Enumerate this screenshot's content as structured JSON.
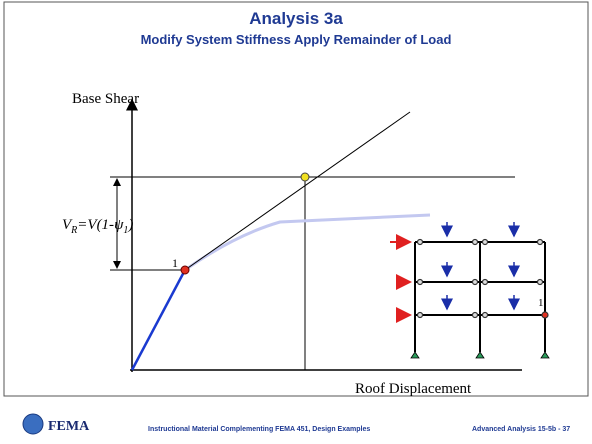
{
  "header": {
    "title": "Analysis 3a",
    "subtitle": "Modify System Stiffness Apply Remainder of Load"
  },
  "diagram": {
    "y_axis_label": "Base Shear",
    "x_axis_label": "Roof Displacement",
    "vr_label": {
      "parts": [
        "V",
        "R",
        "=V(1-",
        "ψ",
        "1",
        ")"
      ]
    },
    "point_label": "1",
    "frame_hinge_label": "1"
  },
  "footer": {
    "logo": "FEMA",
    "center": "Instructional Material Complementing FEMA 451, Design Examples",
    "right": "Advanced Analysis 15-5b - 37"
  }
}
